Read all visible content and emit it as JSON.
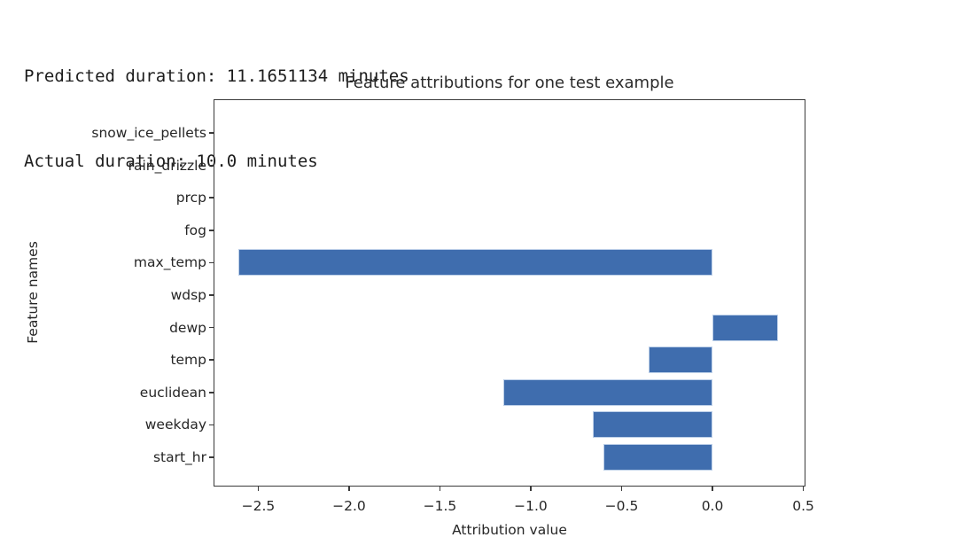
{
  "console": {
    "line1": "Predicted duration: 11.1651134 minutes",
    "line2": "Actual duration: 10.0 minutes"
  },
  "chart_data": {
    "type": "bar",
    "orientation": "horizontal",
    "title": "Feature attributions for one test example",
    "xlabel": "Attribution value",
    "ylabel": "Feature names",
    "categories_top_to_bottom": [
      "snow_ice_pellets",
      "rain_drizzle",
      "prcp",
      "fog",
      "max_temp",
      "wdsp",
      "dewp",
      "temp",
      "euclidean",
      "weekday",
      "start_hr"
    ],
    "values": [
      0.0,
      0.0,
      0.0,
      0.0,
      -2.61,
      0.0,
      0.36,
      -0.35,
      -1.15,
      -0.66,
      -0.6
    ],
    "xlim": [
      -2.746,
      0.512
    ],
    "xticks": [
      -2.5,
      -2.0,
      -1.5,
      -1.0,
      -0.5,
      0.0,
      0.5
    ],
    "xtick_labels": [
      "−2.5",
      "−2.0",
      "−1.5",
      "−1.0",
      "−0.5",
      "0.0",
      "0.5"
    ],
    "grid": false,
    "legend": null,
    "bar_color": "#3f6dae",
    "bar_edge_color": "#bccfe8",
    "spine_color": "#3a3a3a"
  }
}
